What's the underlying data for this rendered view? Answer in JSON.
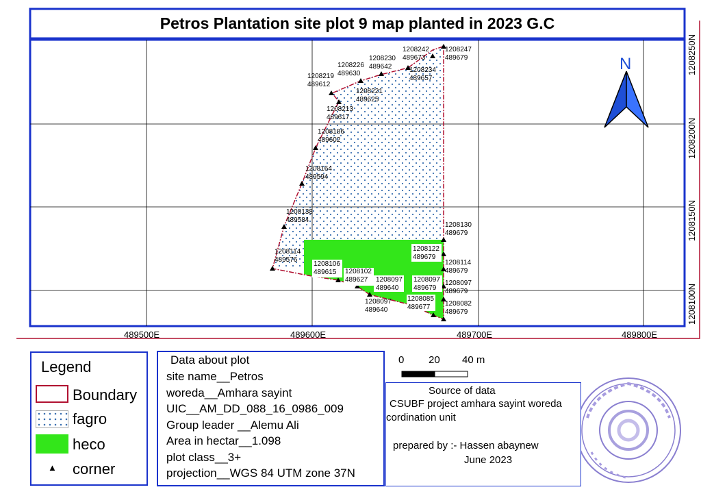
{
  "title": "Petros Plantation site plot 9 map planted in 2023 G.C",
  "north_label": "N",
  "grid": {
    "x_labels": [
      "489500E",
      "489600E",
      "489700E",
      "489800E"
    ],
    "y_labels": [
      "1208250N",
      "1208200N",
      "1208150N",
      "1208100N"
    ]
  },
  "corners": [
    {
      "n": "1208247",
      "e": "489679"
    },
    {
      "n": "1208242",
      "e": "489673"
    },
    {
      "n": "1208234",
      "e": "489657"
    },
    {
      "n": "1208230",
      "e": "489642"
    },
    {
      "n": "1208226",
      "e": "489630"
    },
    {
      "n": "1208221",
      "e": "489625"
    },
    {
      "n": "1208219",
      "e": "489612"
    },
    {
      "n": "1208213",
      "e": "489617"
    },
    {
      "n": "1208186",
      "e": "489602"
    },
    {
      "n": "1208164",
      "e": "489594"
    },
    {
      "n": "1208138",
      "e": "489584"
    },
    {
      "n": "1208114",
      "e": "489576"
    },
    {
      "n": "1208106",
      "e": "489615"
    },
    {
      "n": "1208102",
      "e": "489627"
    },
    {
      "n": "1208097",
      "e": "489640"
    },
    {
      "n": "1208097",
      "e": "489640"
    },
    {
      "n": "1208085",
      "e": "489677"
    },
    {
      "n": "1208082",
      "e": "489679"
    },
    {
      "n": "1208097",
      "e": "489679"
    },
    {
      "n": "1208097",
      "e": "489679"
    },
    {
      "n": "1208114",
      "e": "489679"
    },
    {
      "n": "1208122",
      "e": "489679"
    },
    {
      "n": "1208130",
      "e": "489679"
    }
  ],
  "legend": {
    "title": "Legend",
    "items": [
      {
        "label": "Boundary",
        "symbol": "boundary"
      },
      {
        "label": "fagro",
        "symbol": "dots"
      },
      {
        "label": "heco",
        "symbol": "green"
      },
      {
        "label": "corner",
        "symbol": "triangle"
      }
    ]
  },
  "plot_info": {
    "heading": "Data about plot",
    "lines": [
      "site name__Petros",
      "woreda__Amhara sayint",
      "UIC__AM_DD_088_16_0986_009",
      "Group leader __Alemu Ali",
      "Area in hectar__1.098",
      "plot class__3+",
      "projection__WGS 84 UTM zone 37N"
    ]
  },
  "scale": {
    "labels": [
      "0",
      "20",
      "40 m"
    ]
  },
  "source": {
    "heading": "Source of data",
    "line1": "CSUBF project amhara sayint woreda",
    "line2": "cordination unit",
    "prepared": "prepared by :- Hassen abaynew",
    "date": "June 2023"
  },
  "colors": {
    "frame": "#1a33cc",
    "boundary": "#b01030",
    "heco": "#33e61a",
    "fagro_dot": "#3a6fb0",
    "north": "#2255dd",
    "stamp": "#8a7fd0"
  }
}
